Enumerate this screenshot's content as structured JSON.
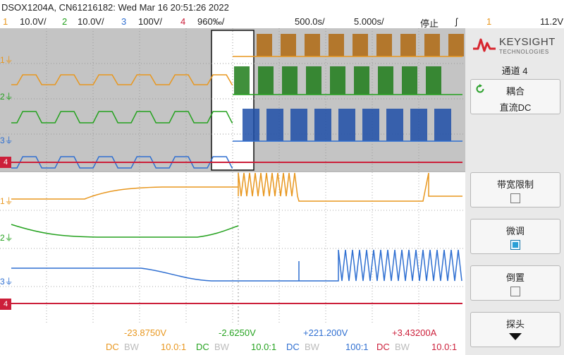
{
  "title": {
    "model_serial_date": "DSOX1204A, CN61216182: Wed Mar 16 20:51:26 2022"
  },
  "channels": [
    {
      "num": "1",
      "scale": "10.0V/",
      "color": "#e8971f"
    },
    {
      "num": "2",
      "scale": "10.0V/",
      "color": "#25a21f"
    },
    {
      "num": "3",
      "scale": "100V/",
      "color": "#2f6fd1"
    },
    {
      "num": "4",
      "scale": "960‰/",
      "color": "#cc1f3a"
    }
  ],
  "timebase": {
    "delay": "500.0s/",
    "scale": "5.000s/",
    "run_state": "停止",
    "trigger_icon": "rising-edge-trigger-icon",
    "trigger_channel": "1",
    "trigger_level": "11.2V"
  },
  "measurements": [
    {
      "value": "-23.8750V",
      "coupling": "DC",
      "bw": "BW",
      "probe": "10.0:1",
      "color": "#e8971f"
    },
    {
      "value": "-2.6250V",
      "coupling": "DC",
      "bw": "BW",
      "probe": "10.0:1",
      "color": "#25a21f"
    },
    {
      "value": "+221.200V",
      "coupling": "DC",
      "bw": "BW",
      "probe": "100:1",
      "color": "#2f6fd1"
    },
    {
      "value": "+3.43200A",
      "coupling": "DC",
      "bw": "BW",
      "probe": "10.0:1",
      "color": "#cc1f3a"
    }
  ],
  "brand": {
    "name": "KEYSIGHT",
    "sub": "TECHNOLOGIES",
    "logo_icon": "keysight-wave-icon"
  },
  "menu": {
    "title": "通道 4",
    "coupling_label": "耦合",
    "coupling_value": "直流DC",
    "coupling_icon": "rotate-knob-icon",
    "bw_limit_label": "带宽限制",
    "bw_limit_checked": false,
    "fine_label": "微调",
    "fine_checked": true,
    "invert_label": "倒置",
    "invert_checked": false,
    "probe_label": "探头",
    "probe_icon": "down-arrow-icon"
  },
  "markers": {
    "ground_icon": "ground-marker-icon",
    "ch4_marker": "4"
  }
}
